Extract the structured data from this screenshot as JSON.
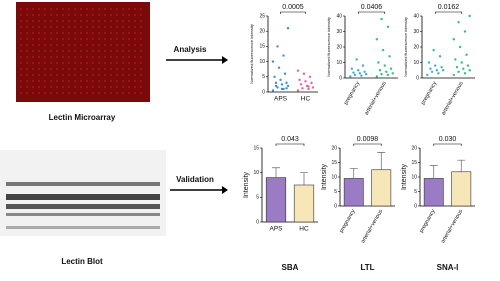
{
  "left": {
    "array_label": "Lectin Microarray",
    "blot_label": "Lectin Blot"
  },
  "arrows": {
    "analysis": "Analysis",
    "validation": "Validation"
  },
  "chart_data": [
    {
      "type": "strip",
      "ylabel": "Normalized fluorescence intensity",
      "categories": [
        "APS",
        "HC"
      ],
      "colors": [
        "#3b8fd6",
        "#e8609a"
      ],
      "values": [
        [
          0.5,
          1,
          1.5,
          2,
          2.5,
          3,
          3,
          4,
          5,
          6,
          8,
          10,
          12,
          15,
          21,
          1,
          2,
          1.2
        ],
        [
          0.5,
          1,
          1.2,
          1.5,
          2,
          2.5,
          3,
          3.5,
          4,
          5,
          6,
          7,
          1.8
        ]
      ],
      "ylim": [
        0,
        25
      ],
      "yticks": [
        0,
        5,
        10,
        15,
        20,
        25
      ],
      "pvalue": "0.0005",
      "rotate_labels": false
    },
    {
      "type": "strip",
      "ylabel": "Normalized fluorescence intensity",
      "categories": [
        "pregnancy",
        "arterial+venous"
      ],
      "colors": [
        "#3bb0c9",
        "#2ec27e"
      ],
      "values": [
        [
          1,
          1.5,
          2,
          2.5,
          3,
          3.5,
          4,
          5,
          6,
          8,
          12
        ],
        [
          1,
          2,
          2.5,
          3,
          4,
          5,
          6,
          8,
          10,
          14,
          18,
          25,
          33,
          38
        ]
      ],
      "ylim": [
        0,
        40
      ],
      "yticks": [
        0,
        10,
        20,
        30,
        40
      ],
      "pvalue": "0.0406",
      "rotate_labels": true
    },
    {
      "type": "strip",
      "ylabel": "Normalized fluorescence intensity",
      "categories": [
        "pregnancy",
        "arterial+venous"
      ],
      "colors": [
        "#3bb0c9",
        "#2ec27e"
      ],
      "values": [
        [
          2,
          3,
          4,
          5,
          5,
          6,
          7,
          8,
          10,
          14,
          18
        ],
        [
          2,
          3,
          4,
          5,
          6,
          7,
          8,
          10,
          12,
          15,
          20,
          25,
          30,
          36,
          40
        ]
      ],
      "ylim": [
        0,
        40
      ],
      "yticks": [
        0,
        10,
        20,
        30,
        40
      ],
      "pvalue": "0.0162",
      "rotate_labels": true
    },
    {
      "type": "bar",
      "title": "SBA",
      "ylabel": "Intensity",
      "categories": [
        "APS",
        "HC"
      ],
      "colors": [
        "#9b7bc4",
        "#f7e6b8"
      ],
      "values": [
        9,
        7.5
      ],
      "errors": [
        2,
        2.5
      ],
      "ylim": [
        0,
        15
      ],
      "yticks": [
        0,
        5,
        10,
        15
      ],
      "pvalue": "0.043",
      "rotate_labels": false
    },
    {
      "type": "bar",
      "title": "LTL",
      "ylabel": "Intensity",
      "categories": [
        "pregnancy",
        "arterial+venous"
      ],
      "colors": [
        "#9b7bc4",
        "#f7e6b8"
      ],
      "values": [
        9.5,
        12.5
      ],
      "errors": [
        3.5,
        6
      ],
      "ylim": [
        0,
        20
      ],
      "yticks": [
        0,
        5,
        10,
        15,
        20
      ],
      "pvalue": "0.0098",
      "rotate_labels": true
    },
    {
      "type": "bar",
      "title": "SNA-I",
      "ylabel": "Intensity",
      "categories": [
        "pregnancy",
        "arterial+venous"
      ],
      "colors": [
        "#9b7bc4",
        "#f7e6b8"
      ],
      "values": [
        9.5,
        11.8
      ],
      "errors": [
        4.5,
        4
      ],
      "ylim": [
        0,
        20
      ],
      "yticks": [
        0,
        5,
        10,
        15,
        20
      ],
      "pvalue": "0.030",
      "rotate_labels": true
    }
  ]
}
